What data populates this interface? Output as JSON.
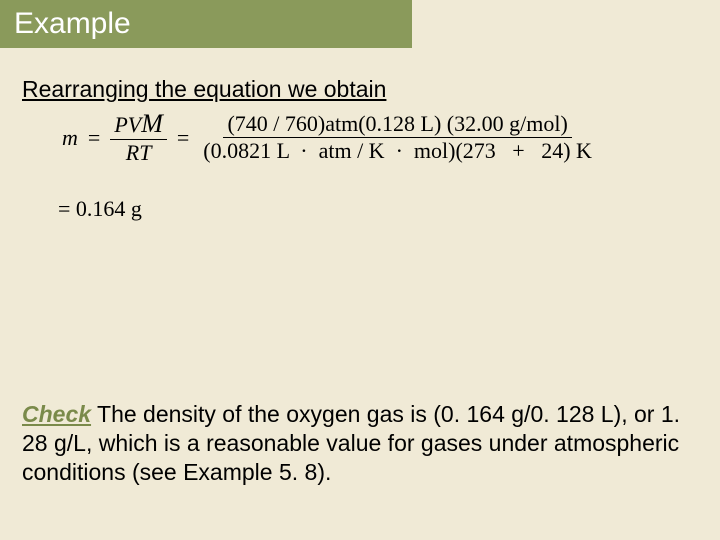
{
  "header": {
    "title": "Example"
  },
  "intro": "Rearranging the equation we obtain",
  "equation": {
    "lhs_var": "m",
    "eq1": "=",
    "frac1_num_a": "PV",
    "frac1_num_m": "M",
    "frac1_den": "RT",
    "eq2": "=",
    "frac2_num": "(740 / 760)atm(0.128 L) (32.00 g/mol)",
    "frac2_den_a": "(0.0821 L",
    "frac2_den_dot1": "·",
    "frac2_den_b": "atm / K",
    "frac2_den_dot2": "·",
    "frac2_den_c": "mol)(273",
    "frac2_den_plus": "+",
    "frac2_den_d": "24) K",
    "result_eq": "=",
    "result_val": "0.164 g"
  },
  "check": {
    "label": "Check",
    "text": " The density of the oxygen gas is (0. 164 g/0. 128 L), or 1. 28 g/L, which is a reasonable value for gases under atmospheric conditions (see Example 5. 8)."
  },
  "colors": {
    "page_bg": "#f0ead6",
    "header_bg": "#8a9a5b",
    "header_text": "#ffffff",
    "body_text": "#000000",
    "check_label": "#7a8a4a"
  }
}
